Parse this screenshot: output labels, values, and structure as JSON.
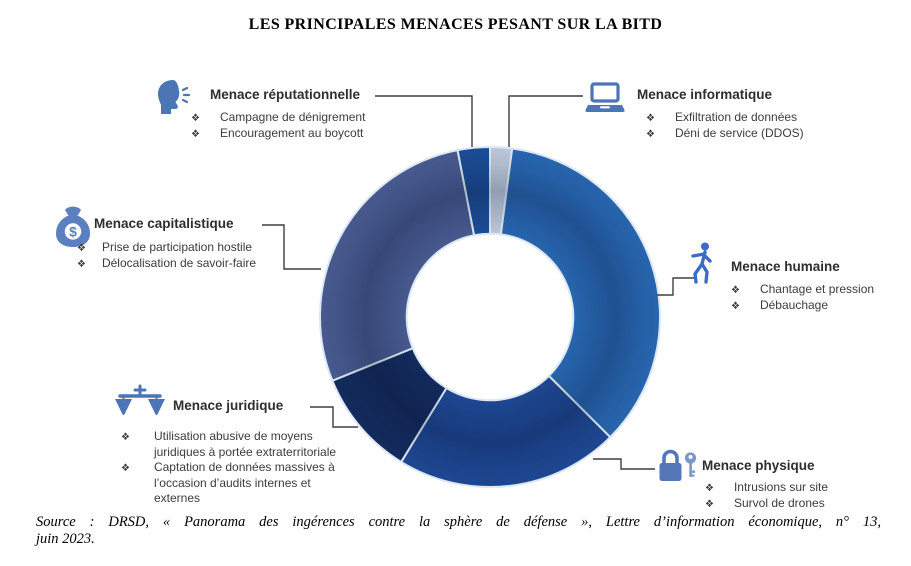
{
  "title": "LES PRINCIPALES MENACES PESANT SUR LA BITD",
  "bullet_glyph": "❖",
  "chart_data": {
    "type": "donut",
    "title": "LES PRINCIPALES MENACES PESANT SUR LA BITD",
    "direction": "clockwise",
    "start_angle_deg": 0,
    "inner_radius_ratio": 0.49,
    "legend_position": "around",
    "segments": [
      {
        "label": "Menace informatique",
        "angle_deg": 7.5,
        "share_pct": 2,
        "color": "#b9c7d8"
      },
      {
        "label": "Menace humaine",
        "angle_deg": 127.5,
        "share_pct": 35,
        "color": "#2765ae"
      },
      {
        "label": "Menace physique",
        "angle_deg": 76.5,
        "share_pct": 21,
        "color": "#1d4791"
      },
      {
        "label": "Menace juridique",
        "angle_deg": 36.5,
        "share_pct": 10,
        "color": "#132b5c"
      },
      {
        "label": "Menace capitalistique",
        "angle_deg": 101,
        "share_pct": 28,
        "color": "#47598e"
      },
      {
        "label": "Menace réputationnelle",
        "angle_deg": 11,
        "share_pct": 3,
        "color": "#1b4c94"
      }
    ]
  },
  "threats": [
    {
      "label": "Menace réputationnelle",
      "icon": "speaking-head-icon",
      "items": [
        "Campagne de dénigrement",
        "Encouragement au boycott"
      ]
    },
    {
      "label": "Menace informatique",
      "icon": "laptop-icon",
      "items": [
        "Exfiltration de données",
        "Déni de service (DDOS)"
      ]
    },
    {
      "label": "Menace humaine",
      "icon": "walking-person-icon",
      "items": [
        "Chantage et pression",
        "Débauchage"
      ]
    },
    {
      "label": "Menace physique",
      "icon": "padlock-key-icon",
      "items": [
        "Intrusions sur site",
        "Survol de drones"
      ]
    },
    {
      "label": "Menace juridique",
      "icon": "scales-icon",
      "items": [
        "Utilisation abusive de moyens juridiques à portée extraterritoriale",
        "Captation de données massives à l’occasion d’audits internes et externes"
      ]
    },
    {
      "label": "Menace capitalistique",
      "icon": "money-bag-icon",
      "items": [
        "Prise de participation hostile",
        "Délocalisation de savoir-faire"
      ]
    }
  ],
  "source": {
    "line1": "Source :  DRSD, « Panorama des ingérences contre la sphère de défense »,  Lettre d’information économique,  n° 13,",
    "line2": "juin 2023."
  }
}
